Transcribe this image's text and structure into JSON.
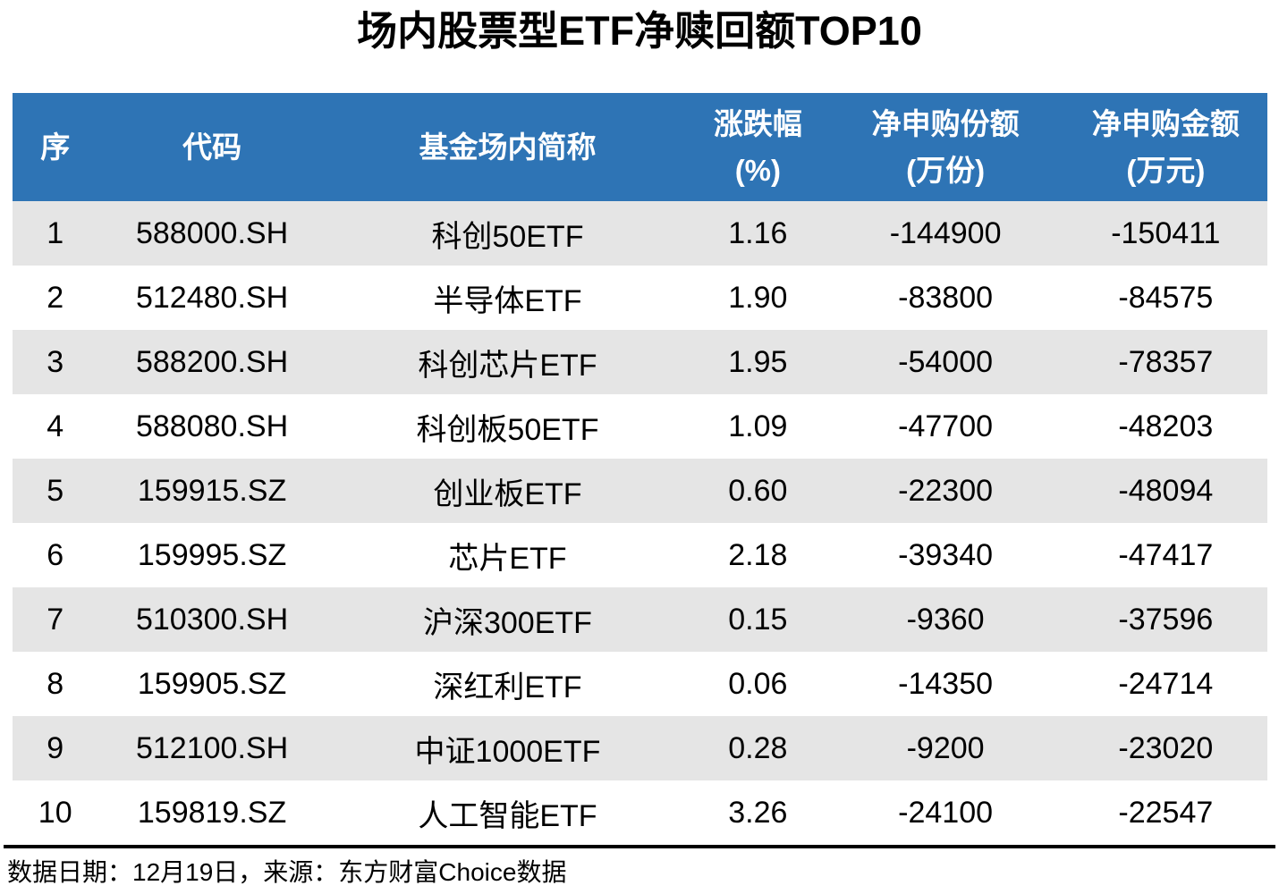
{
  "title": "场内股票型ETF净赎回额TOP10",
  "chart_data": {
    "type": "table",
    "title": "场内股票型ETF净赎回额TOP10",
    "columns": [
      {
        "key": "seq",
        "label": "序",
        "unit": ""
      },
      {
        "key": "code",
        "label": "代码",
        "unit": ""
      },
      {
        "key": "name",
        "label": "基金场内简称",
        "unit": ""
      },
      {
        "key": "change-pct",
        "label": "涨跌幅",
        "unit": "(%)"
      },
      {
        "key": "net-shares",
        "label": "净申购份额",
        "unit": "(万份)"
      },
      {
        "key": "net-amount",
        "label": "净申购金额",
        "unit": "(万元)"
      }
    ],
    "rows": [
      [
        "1",
        "588000.SH",
        "科创50ETF",
        "1.16",
        "-144900",
        "-150411"
      ],
      [
        "2",
        "512480.SH",
        "半导体ETF",
        "1.90",
        "-83800",
        "-84575"
      ],
      [
        "3",
        "588200.SH",
        "科创芯片ETF",
        "1.95",
        "-54000",
        "-78357"
      ],
      [
        "4",
        "588080.SH",
        "科创板50ETF",
        "1.09",
        "-47700",
        "-48203"
      ],
      [
        "5",
        "159915.SZ",
        "创业板ETF",
        "0.60",
        "-22300",
        "-48094"
      ],
      [
        "6",
        "159995.SZ",
        "芯片ETF",
        "2.18",
        "-39340",
        "-47417"
      ],
      [
        "7",
        "510300.SH",
        "沪深300ETF",
        "0.15",
        "-9360",
        "-37596"
      ],
      [
        "8",
        "159905.SZ",
        "深红利ETF",
        "0.06",
        "-14350",
        "-24714"
      ],
      [
        "9",
        "512100.SH",
        "中证1000ETF",
        "0.28",
        "-9200",
        "-23020"
      ],
      [
        "10",
        "159819.SZ",
        "人工智能ETF",
        "3.26",
        "-24100",
        "-22547"
      ]
    ]
  },
  "footer": {
    "note": "数据日期：12月19日，来源：东方财富Choice数据"
  },
  "colors": {
    "header_bg": "#2E74B5",
    "header_text": "#FFFFFF",
    "row_alt_bg": "#E5E5E5",
    "body_text": "#000000",
    "divider": "#000000"
  }
}
